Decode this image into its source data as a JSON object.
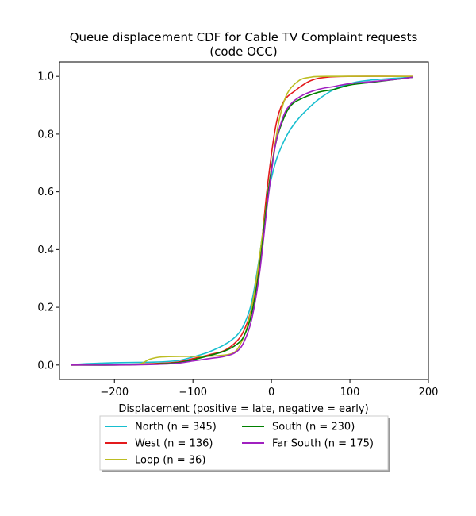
{
  "chart_data": {
    "type": "line",
    "title_line1": "Queue displacement CDF for Cable TV Complaint  requests",
    "title_line2": "(code OCC)",
    "xlabel": "Displacement (positive = late, negative = early)",
    "ylabel": "",
    "xlim": [
      -270,
      200
    ],
    "ylim": [
      -0.05,
      1.05
    ],
    "xticks": [
      -200,
      -100,
      0,
      100,
      200
    ],
    "xtick_labels": [
      "−200",
      "−100",
      "0",
      "100",
      "200"
    ],
    "yticks": [
      0.0,
      0.2,
      0.4,
      0.6,
      0.8,
      1.0
    ],
    "ytick_labels": [
      "0.0",
      "0.2",
      "0.4",
      "0.6",
      "0.8",
      "1.0"
    ],
    "grid": false,
    "legend_position": "below plot, two columns",
    "series": [
      {
        "name": "North (n = 345)",
        "color": "#17becf",
        "points": [
          [
            -255,
            0.002
          ],
          [
            -200,
            0.008
          ],
          [
            -150,
            0.01
          ],
          [
            -120,
            0.015
          ],
          [
            -100,
            0.028
          ],
          [
            -80,
            0.045
          ],
          [
            -60,
            0.07
          ],
          [
            -45,
            0.1
          ],
          [
            -35,
            0.14
          ],
          [
            -25,
            0.22
          ],
          [
            -15,
            0.38
          ],
          [
            -5,
            0.58
          ],
          [
            5,
            0.7
          ],
          [
            15,
            0.77
          ],
          [
            25,
            0.82
          ],
          [
            40,
            0.87
          ],
          [
            60,
            0.92
          ],
          [
            80,
            0.955
          ],
          [
            100,
            0.975
          ],
          [
            120,
            0.985
          ],
          [
            150,
            0.992
          ],
          [
            180,
            0.997
          ]
        ]
      },
      {
        "name": "West (n = 136)",
        "color": "#e31a1c",
        "points": [
          [
            -255,
            0.0
          ],
          [
            -200,
            0.002
          ],
          [
            -150,
            0.005
          ],
          [
            -120,
            0.01
          ],
          [
            -100,
            0.022
          ],
          [
            -80,
            0.035
          ],
          [
            -60,
            0.05
          ],
          [
            -45,
            0.08
          ],
          [
            -35,
            0.12
          ],
          [
            -25,
            0.2
          ],
          [
            -15,
            0.36
          ],
          [
            -5,
            0.62
          ],
          [
            5,
            0.82
          ],
          [
            15,
            0.91
          ],
          [
            30,
            0.95
          ],
          [
            50,
            0.985
          ],
          [
            70,
            0.997
          ],
          [
            100,
            1.0
          ],
          [
            180,
            1.0
          ]
        ]
      },
      {
        "name": "Loop (n = 36)",
        "color": "#bcbd22",
        "points": [
          [
            -255,
            0.0
          ],
          [
            -200,
            0.0
          ],
          [
            -170,
            0.002
          ],
          [
            -155,
            0.02
          ],
          [
            -140,
            0.028
          ],
          [
            -110,
            0.03
          ],
          [
            -90,
            0.03
          ],
          [
            -70,
            0.032
          ],
          [
            -50,
            0.04
          ],
          [
            -40,
            0.07
          ],
          [
            -30,
            0.14
          ],
          [
            -20,
            0.28
          ],
          [
            -10,
            0.48
          ],
          [
            0,
            0.68
          ],
          [
            10,
            0.85
          ],
          [
            20,
            0.94
          ],
          [
            35,
            0.985
          ],
          [
            50,
            0.997
          ],
          [
            70,
            1.0
          ],
          [
            180,
            1.0
          ]
        ]
      },
      {
        "name": "South (n = 230)",
        "color": "#008000",
        "points": [
          [
            -255,
            0.0
          ],
          [
            -200,
            0.0
          ],
          [
            -150,
            0.003
          ],
          [
            -120,
            0.008
          ],
          [
            -100,
            0.018
          ],
          [
            -80,
            0.032
          ],
          [
            -60,
            0.048
          ],
          [
            -45,
            0.07
          ],
          [
            -35,
            0.1
          ],
          [
            -25,
            0.18
          ],
          [
            -15,
            0.34
          ],
          [
            -5,
            0.58
          ],
          [
            5,
            0.76
          ],
          [
            15,
            0.85
          ],
          [
            25,
            0.9
          ],
          [
            40,
            0.925
          ],
          [
            60,
            0.945
          ],
          [
            80,
            0.955
          ],
          [
            100,
            0.97
          ],
          [
            130,
            0.98
          ],
          [
            160,
            0.99
          ],
          [
            180,
            0.997
          ]
        ]
      },
      {
        "name": "Far South (n = 175)",
        "color": "#a020c0",
        "points": [
          [
            -255,
            0.0
          ],
          [
            -200,
            0.0
          ],
          [
            -150,
            0.002
          ],
          [
            -120,
            0.006
          ],
          [
            -100,
            0.014
          ],
          [
            -80,
            0.022
          ],
          [
            -60,
            0.03
          ],
          [
            -45,
            0.045
          ],
          [
            -35,
            0.08
          ],
          [
            -25,
            0.16
          ],
          [
            -15,
            0.32
          ],
          [
            -5,
            0.56
          ],
          [
            5,
            0.76
          ],
          [
            15,
            0.86
          ],
          [
            25,
            0.905
          ],
          [
            40,
            0.935
          ],
          [
            60,
            0.955
          ],
          [
            80,
            0.965
          ],
          [
            100,
            0.975
          ],
          [
            130,
            0.982
          ],
          [
            160,
            0.99
          ],
          [
            180,
            0.997
          ]
        ]
      }
    ],
    "legend_order": [
      0,
      3,
      1,
      4,
      2
    ]
  }
}
